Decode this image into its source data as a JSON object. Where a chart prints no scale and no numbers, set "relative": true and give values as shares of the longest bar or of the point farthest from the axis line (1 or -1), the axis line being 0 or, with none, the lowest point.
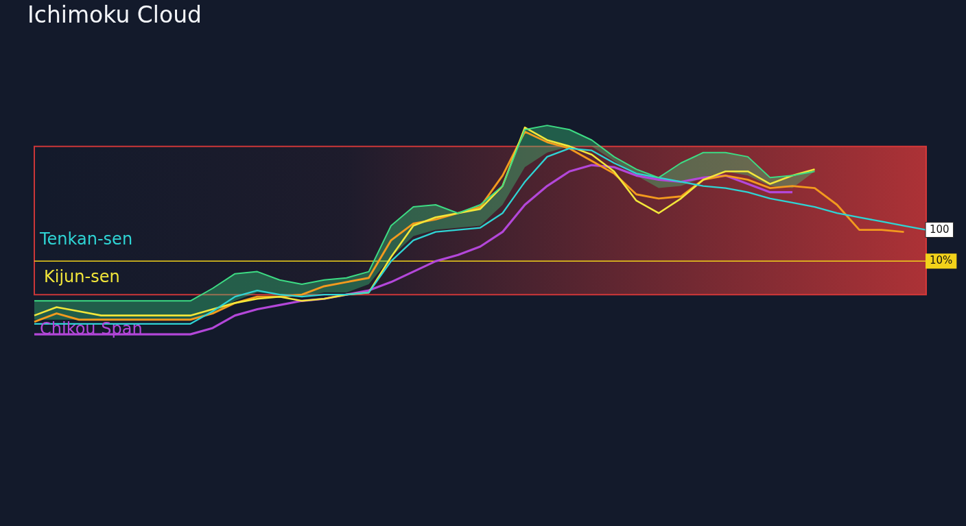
{
  "chart_data": {
    "type": "line",
    "title": "Ichimoku Cloud",
    "relative": true,
    "marker": "none",
    "categories": [
      null,
      null,
      null,
      null,
      null,
      null,
      null,
      null,
      null,
      null,
      null,
      null,
      null,
      null,
      null,
      null,
      null,
      null,
      null,
      null,
      null,
      null,
      null,
      null,
      null,
      null,
      null,
      null,
      null,
      null,
      null,
      null,
      null,
      null,
      null,
      null,
      null,
      null,
      null,
      null,
      null
    ],
    "series": [
      {
        "color": "#3ddc84",
        "values": [
          0.16,
          0.16,
          0.16,
          0.16,
          0.16,
          0.16,
          0.16,
          0.16,
          0.22,
          0.29,
          0.3,
          0.26,
          0.24,
          0.26,
          0.27,
          0.3,
          0.52,
          0.61,
          0.62,
          0.58,
          0.62,
          0.71,
          0.98,
          1.0,
          0.98,
          0.93,
          0.85,
          0.79,
          0.75,
          0.82,
          0.87,
          0.87,
          0.85,
          0.75,
          0.76,
          0.78,
          null,
          null,
          null,
          null,
          null
        ],
        "upper": [
          0.16,
          0.16,
          0.16,
          0.16,
          0.16,
          0.16,
          0.16,
          0.16,
          0.22,
          0.29,
          0.3,
          0.26,
          0.24,
          0.26,
          0.27,
          0.3,
          0.52,
          0.61,
          0.62,
          0.58,
          0.62,
          0.71,
          0.98,
          1.0,
          0.98,
          0.93,
          0.85,
          0.79,
          0.75,
          0.82,
          0.87,
          0.87,
          0.85,
          0.75,
          0.76,
          0.78,
          null,
          null,
          null,
          null,
          null
        ],
        "lower": [
          0.07,
          0.07,
          0.07,
          0.07,
          0.07,
          0.07,
          0.07,
          0.07,
          0.1,
          0.16,
          0.2,
          0.19,
          0.18,
          0.2,
          0.2,
          0.24,
          0.37,
          0.47,
          0.5,
          0.51,
          0.52,
          0.62,
          0.8,
          0.87,
          0.9,
          0.9,
          0.83,
          0.76,
          0.7,
          0.71,
          0.75,
          0.78,
          0.76,
          0.71,
          0.7,
          0.78,
          null,
          null,
          null,
          null,
          null
        ]
      },
      {
        "name": "Tenkan-sen",
        "color": "#2fd4d4",
        "values": [
          0.05,
          0.05,
          0.05,
          0.05,
          0.05,
          0.05,
          0.05,
          0.05,
          0.11,
          0.18,
          0.21,
          0.19,
          0.18,
          0.19,
          0.19,
          0.2,
          0.35,
          0.45,
          0.49,
          0.5,
          0.51,
          0.58,
          0.73,
          0.85,
          0.89,
          0.88,
          0.82,
          0.77,
          0.75,
          0.73,
          0.71,
          0.7,
          0.68,
          0.65,
          0.63,
          0.61,
          0.58,
          0.56,
          0.54,
          0.52,
          0.5
        ]
      },
      {
        "name": "Kijun-sen",
        "color": "#f2e63a",
        "values": [
          0.09,
          0.13,
          0.11,
          0.09,
          0.09,
          0.09,
          0.09,
          0.09,
          0.12,
          0.15,
          0.17,
          0.18,
          0.16,
          0.17,
          0.19,
          0.2,
          0.37,
          0.52,
          0.56,
          0.58,
          0.6,
          0.71,
          0.99,
          0.93,
          0.9,
          0.86,
          0.78,
          0.64,
          0.58,
          0.65,
          0.74,
          0.78,
          0.78,
          0.72,
          0.76,
          0.79,
          null,
          null,
          null,
          null,
          null
        ]
      },
      {
        "color": "#f39a1e",
        "values": [
          0.06,
          0.1,
          0.07,
          0.07,
          0.07,
          0.07,
          0.07,
          0.07,
          0.1,
          0.15,
          0.18,
          0.18,
          0.19,
          0.23,
          0.25,
          0.27,
          0.45,
          0.53,
          0.55,
          0.58,
          0.61,
          0.76,
          0.97,
          0.92,
          0.89,
          0.83,
          0.77,
          0.67,
          0.65,
          0.66,
          0.74,
          0.76,
          0.74,
          0.7,
          0.71,
          0.7,
          0.62,
          0.5,
          0.5,
          0.49,
          null
        ]
      },
      {
        "name": "Chikou Span",
        "color": "#b347d9",
        "values": [
          0,
          0,
          0,
          0,
          0,
          0,
          0,
          0,
          0.03,
          0.09,
          0.12,
          0.14,
          0.16,
          0.17,
          0.19,
          0.21,
          0.25,
          0.3,
          0.35,
          0.38,
          0.42,
          0.49,
          0.62,
          0.71,
          0.78,
          0.81,
          0.8,
          0.76,
          0.74,
          0.73,
          0.75,
          0.76,
          0.72,
          0.68,
          0.68,
          null,
          null,
          null,
          null,
          null,
          null
        ]
      }
    ],
    "bands": [
      {
        "axis": "y",
        "from": 0.19,
        "to": 0.9,
        "color": "#e03a3a"
      }
    ],
    "ref_lines": [
      {
        "axis": "y",
        "value": 0.35,
        "color": "#f2d21a"
      }
    ],
    "annotations": [
      {
        "text": "100",
        "y": 0.5
      },
      "10%"
    ]
  }
}
